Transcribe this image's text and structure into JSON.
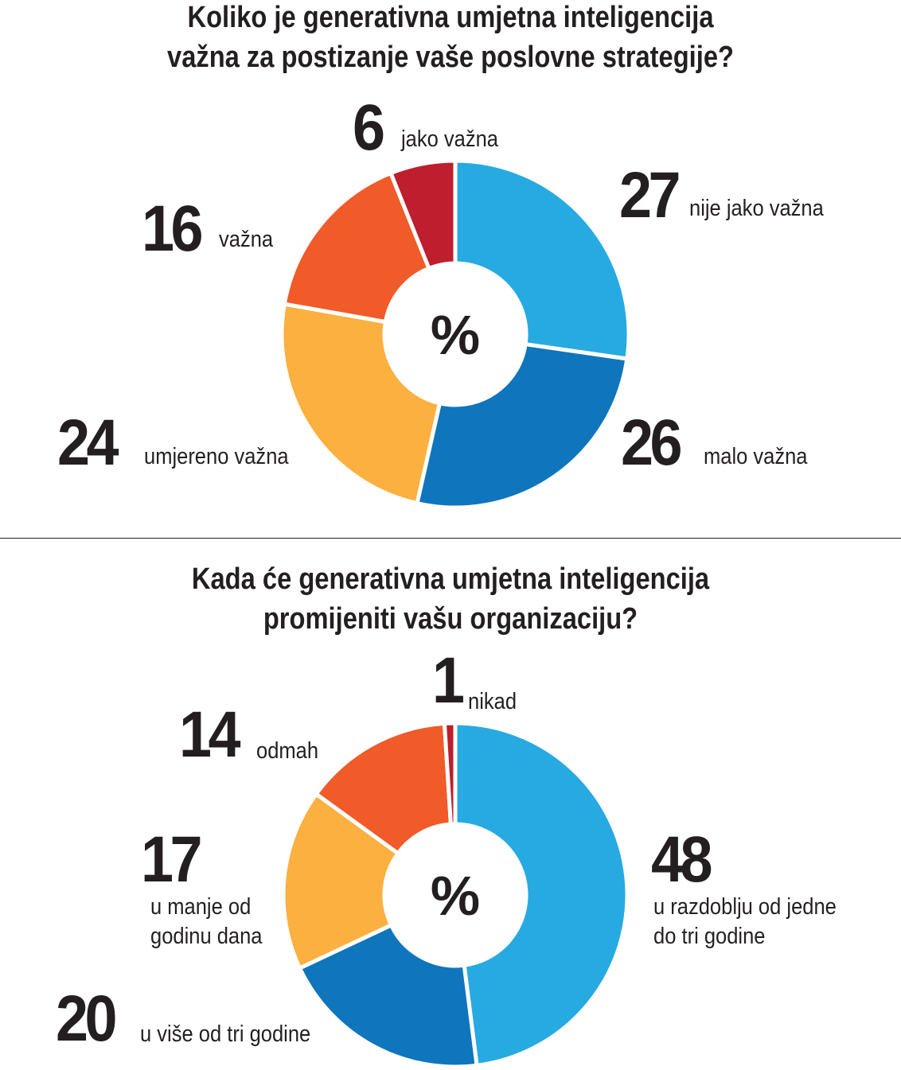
{
  "chart_data": [
    {
      "type": "pie",
      "title": "Koliko je  generativna umjetna inteligencija važna za postizanje vaše poslovne strategije?",
      "title_lines": [
        "Koliko je  generativna umjetna inteligencija",
        "važna za postizanje vaše poslovne strategije?"
      ],
      "center_label": "%",
      "slices": [
        {
          "label": "nije jako važna",
          "value": 27,
          "color": "#27aae1"
        },
        {
          "label": "malo važna",
          "value": 26,
          "color": "#0f75bc"
        },
        {
          "label": "umjereno važna",
          "value": 24,
          "color": "#fbb040"
        },
        {
          "label": "važna",
          "value": 16,
          "color": "#f15a29"
        },
        {
          "label": "jako važna",
          "value": 6,
          "color": "#be1e2d"
        }
      ]
    },
    {
      "type": "pie",
      "title": "Kada će generativna umjetna inteligencija promijeniti vašu organizaciju?",
      "title_lines": [
        "Kada će generativna umjetna inteligencija",
        "promijeniti vašu organizaciju?"
      ],
      "center_label": "%",
      "slices": [
        {
          "label": "u razdoblju od jedne do tri godine",
          "label_lines": [
            "u razdoblju od jedne",
            "do tri godine"
          ],
          "value": 48,
          "color": "#27aae1"
        },
        {
          "label": "u više od tri godine",
          "value": 20,
          "color": "#0f75bc"
        },
        {
          "label": "u manje od godinu dana",
          "label_lines": [
            "u manje od",
            "godinu dana"
          ],
          "value": 17,
          "color": "#fbb040"
        },
        {
          "label": "odmah",
          "value": 14,
          "color": "#f15a29"
        },
        {
          "label": "nikad",
          "value": 1,
          "color": "#be1e2d"
        }
      ]
    }
  ]
}
